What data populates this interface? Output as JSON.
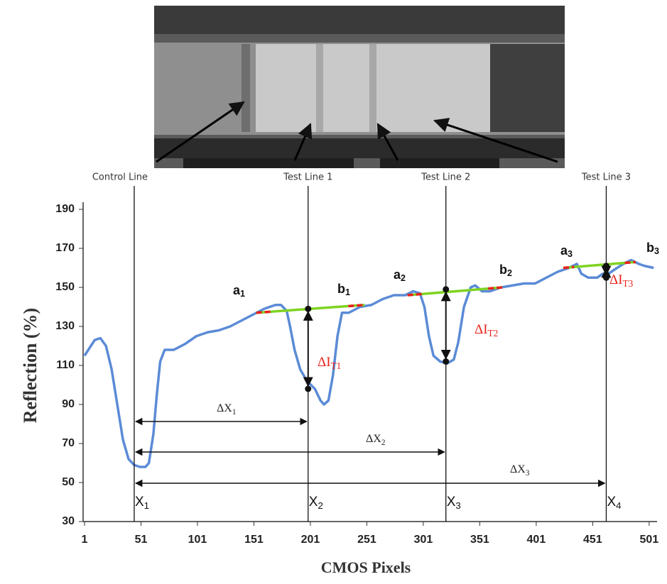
{
  "chart_data": {
    "type": "line",
    "xlabel": "CMOS Pixels",
    "ylabel": "Reflection (%)",
    "x": [
      1,
      10,
      15,
      20,
      25,
      30,
      35,
      40,
      45,
      50,
      55,
      58,
      62,
      65,
      68,
      72,
      80,
      90,
      100,
      110,
      120,
      130,
      140,
      150,
      160,
      170,
      175,
      180,
      183,
      187,
      192,
      198,
      205,
      210,
      213,
      217,
      221,
      225,
      229,
      235,
      245,
      255,
      265,
      275,
      285,
      292,
      298,
      302,
      306,
      310,
      316,
      322,
      328,
      332,
      337,
      343,
      347,
      353,
      360,
      370,
      380,
      390,
      400,
      410,
      420,
      430,
      437,
      441,
      447,
      455,
      460,
      465,
      470,
      478,
      485,
      492,
      497,
      505
    ],
    "values": [
      115,
      123,
      124,
      120,
      108,
      90,
      72,
      62,
      59,
      58,
      58,
      60,
      75,
      95,
      112,
      118,
      118,
      121,
      125,
      127,
      128,
      130,
      133,
      136,
      139,
      141,
      141,
      138,
      130,
      118,
      108,
      102,
      98,
      92,
      90,
      92,
      105,
      125,
      137,
      137,
      140,
      141,
      144,
      146,
      146,
      148,
      147,
      140,
      125,
      115,
      112,
      111,
      113,
      122,
      140,
      150,
      151,
      148,
      148,
      150,
      151,
      152,
      152,
      155,
      158,
      160,
      162,
      157,
      155,
      155,
      157,
      157,
      159,
      162,
      164,
      162,
      161,
      160
    ],
    "color": "#5b8bd6",
    "xlim": [
      1,
      508
    ],
    "ylim": [
      30,
      190
    ],
    "xticks": [
      1,
      51,
      101,
      151,
      201,
      251,
      301,
      351,
      401,
      451,
      501
    ],
    "yticks": [
      30,
      50,
      70,
      90,
      110,
      130,
      150,
      170,
      190
    ],
    "markers": [
      {
        "label": "Control Line",
        "x": 45,
        "x_label": {
          "text": "X",
          "sub": "1"
        }
      },
      {
        "label": "Test Line 1",
        "x": 199,
        "x_label": {
          "text": "X",
          "sub": "2"
        }
      },
      {
        "label": "Test Line 2",
        "x": 321,
        "x_label": {
          "text": "X",
          "sub": "3"
        }
      },
      {
        "label": "Test Line 3",
        "x": 463,
        "x_label": {
          "text": "X",
          "sub": "4"
        }
      }
    ],
    "delta_x": [
      {
        "text": "ΔX",
        "sub": "1"
      },
      {
        "text": "ΔX",
        "sub": "2"
      },
      {
        "text": "ΔX",
        "sub": "3"
      }
    ],
    "baseline_color": "#7ed321",
    "endpoint_color": "#e8221b",
    "baselines": [
      {
        "x": [
          153,
          249
        ],
        "y": [
          137,
          141
        ]
      },
      {
        "x": [
          287,
          371
        ],
        "y": [
          146,
          150
        ]
      },
      {
        "x": [
          425,
          489
        ],
        "y": [
          160,
          163
        ]
      }
    ],
    "baseline_labels": [
      {
        "text": "a",
        "sub": "1"
      },
      {
        "text": "b",
        "sub": "1"
      },
      {
        "text": "a",
        "sub": "2"
      },
      {
        "text": "b",
        "sub": "2"
      },
      {
        "text": "a",
        "sub": "3"
      },
      {
        "text": "b",
        "sub": "3"
      }
    ],
    "points": {
      "x": [
        199,
        199,
        321,
        321,
        463,
        463
      ],
      "y": [
        139,
        98,
        149,
        112,
        161,
        155
      ]
    },
    "delta_i": [
      {
        "text": "ΔI",
        "sub": "T1"
      },
      {
        "text": "ΔI",
        "sub": "T2"
      },
      {
        "text": "ΔI",
        "sub": "T3"
      }
    ]
  }
}
